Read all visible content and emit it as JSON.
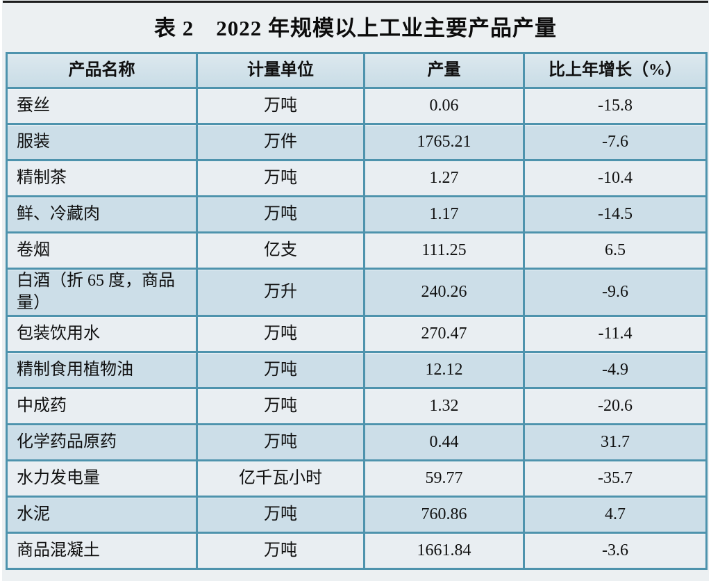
{
  "page": {
    "title": "表 2　2022 年规模以上工业主要产品产量"
  },
  "colors": {
    "page_bg": "#ecf0f2",
    "top_rule": "#1d1d1d",
    "border_teal": "#4e93ad",
    "header_bg": "#cfe1e9",
    "row_light": "#e9eef2",
    "row_blue": "#ccdee8",
    "text": "#101010"
  },
  "table": {
    "columns": [
      "产品名称",
      "计量单位",
      "产量",
      "比上年增长（%）"
    ],
    "rows": [
      {
        "product": "蚕丝",
        "unit": "万吨",
        "output": "0.06",
        "growth": "-15.8"
      },
      {
        "product": "服装",
        "unit": "万件",
        "output": "1765.21",
        "growth": "-7.6"
      },
      {
        "product": "精制茶",
        "unit": "万吨",
        "output": "1.27",
        "growth": "-10.4"
      },
      {
        "product": "鲜、冷藏肉",
        "unit": "万吨",
        "output": "1.17",
        "growth": "-14.5"
      },
      {
        "product": "卷烟",
        "unit": "亿支",
        "output": "111.25",
        "growth": "6.5"
      },
      {
        "product": "白酒（折 65 度，商品量）",
        "unit": "万升",
        "output": "240.26",
        "growth": "-9.6"
      },
      {
        "product": "包装饮用水",
        "unit": "万吨",
        "output": "270.47",
        "growth": "-11.4"
      },
      {
        "product": "精制食用植物油",
        "unit": "万吨",
        "output": "12.12",
        "growth": "-4.9"
      },
      {
        "product": "中成药",
        "unit": "万吨",
        "output": "1.32",
        "growth": "-20.6"
      },
      {
        "product": "化学药品原药",
        "unit": "万吨",
        "output": "0.44",
        "growth": "31.7"
      },
      {
        "product": "水力发电量",
        "unit": "亿千瓦小时",
        "output": "59.77",
        "growth": "-35.7"
      },
      {
        "product": "水泥",
        "unit": "万吨",
        "output": "760.86",
        "growth": "4.7"
      },
      {
        "product": "商品混凝土",
        "unit": "万吨",
        "output": "1661.84",
        "growth": "-3.6"
      }
    ]
  }
}
